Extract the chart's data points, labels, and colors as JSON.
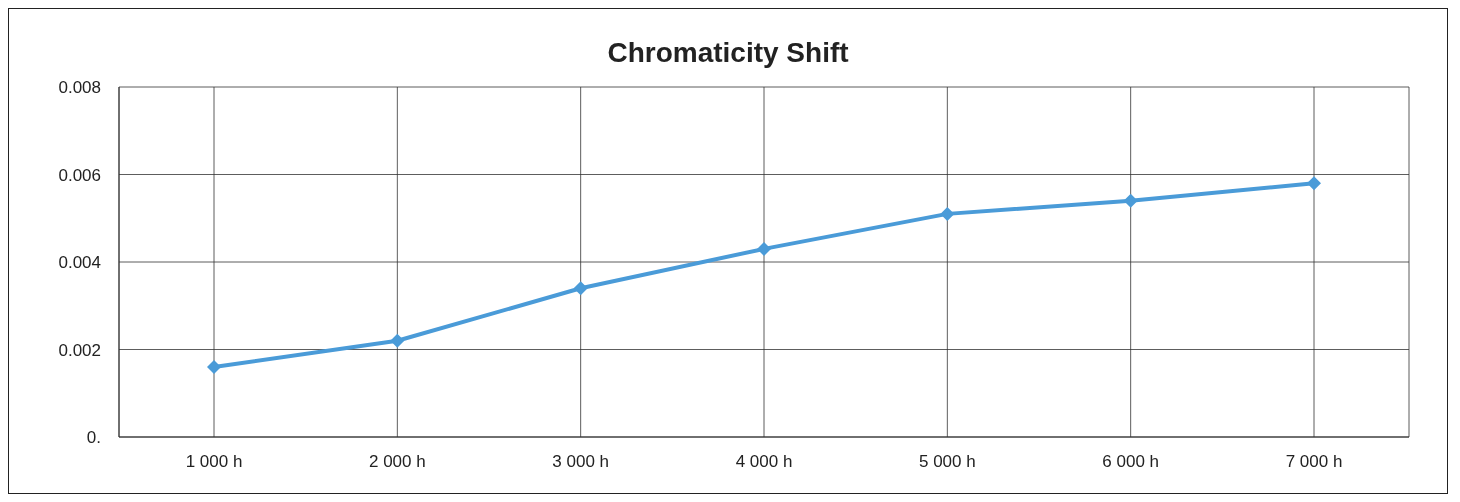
{
  "chart_data": {
    "type": "line",
    "title": "Chromaticity Shift",
    "categories": [
      "1 000 h",
      "2 000 h",
      "3 000 h",
      "4 000 h",
      "5 000 h",
      "6 000 h",
      "7 000 h"
    ],
    "series": [
      {
        "color": "#4a9bd8",
        "values": [
          0.0016,
          0.0022,
          0.0034,
          0.0043,
          0.0051,
          0.0054,
          0.0058
        ]
      }
    ],
    "ylim": [
      0,
      0.008
    ],
    "yticks": [
      {
        "value": 0,
        "label": "0."
      },
      0.002,
      0.004,
      0.006,
      0.008
    ],
    "grid": true,
    "marker": "diamond",
    "line_style": "solid"
  }
}
